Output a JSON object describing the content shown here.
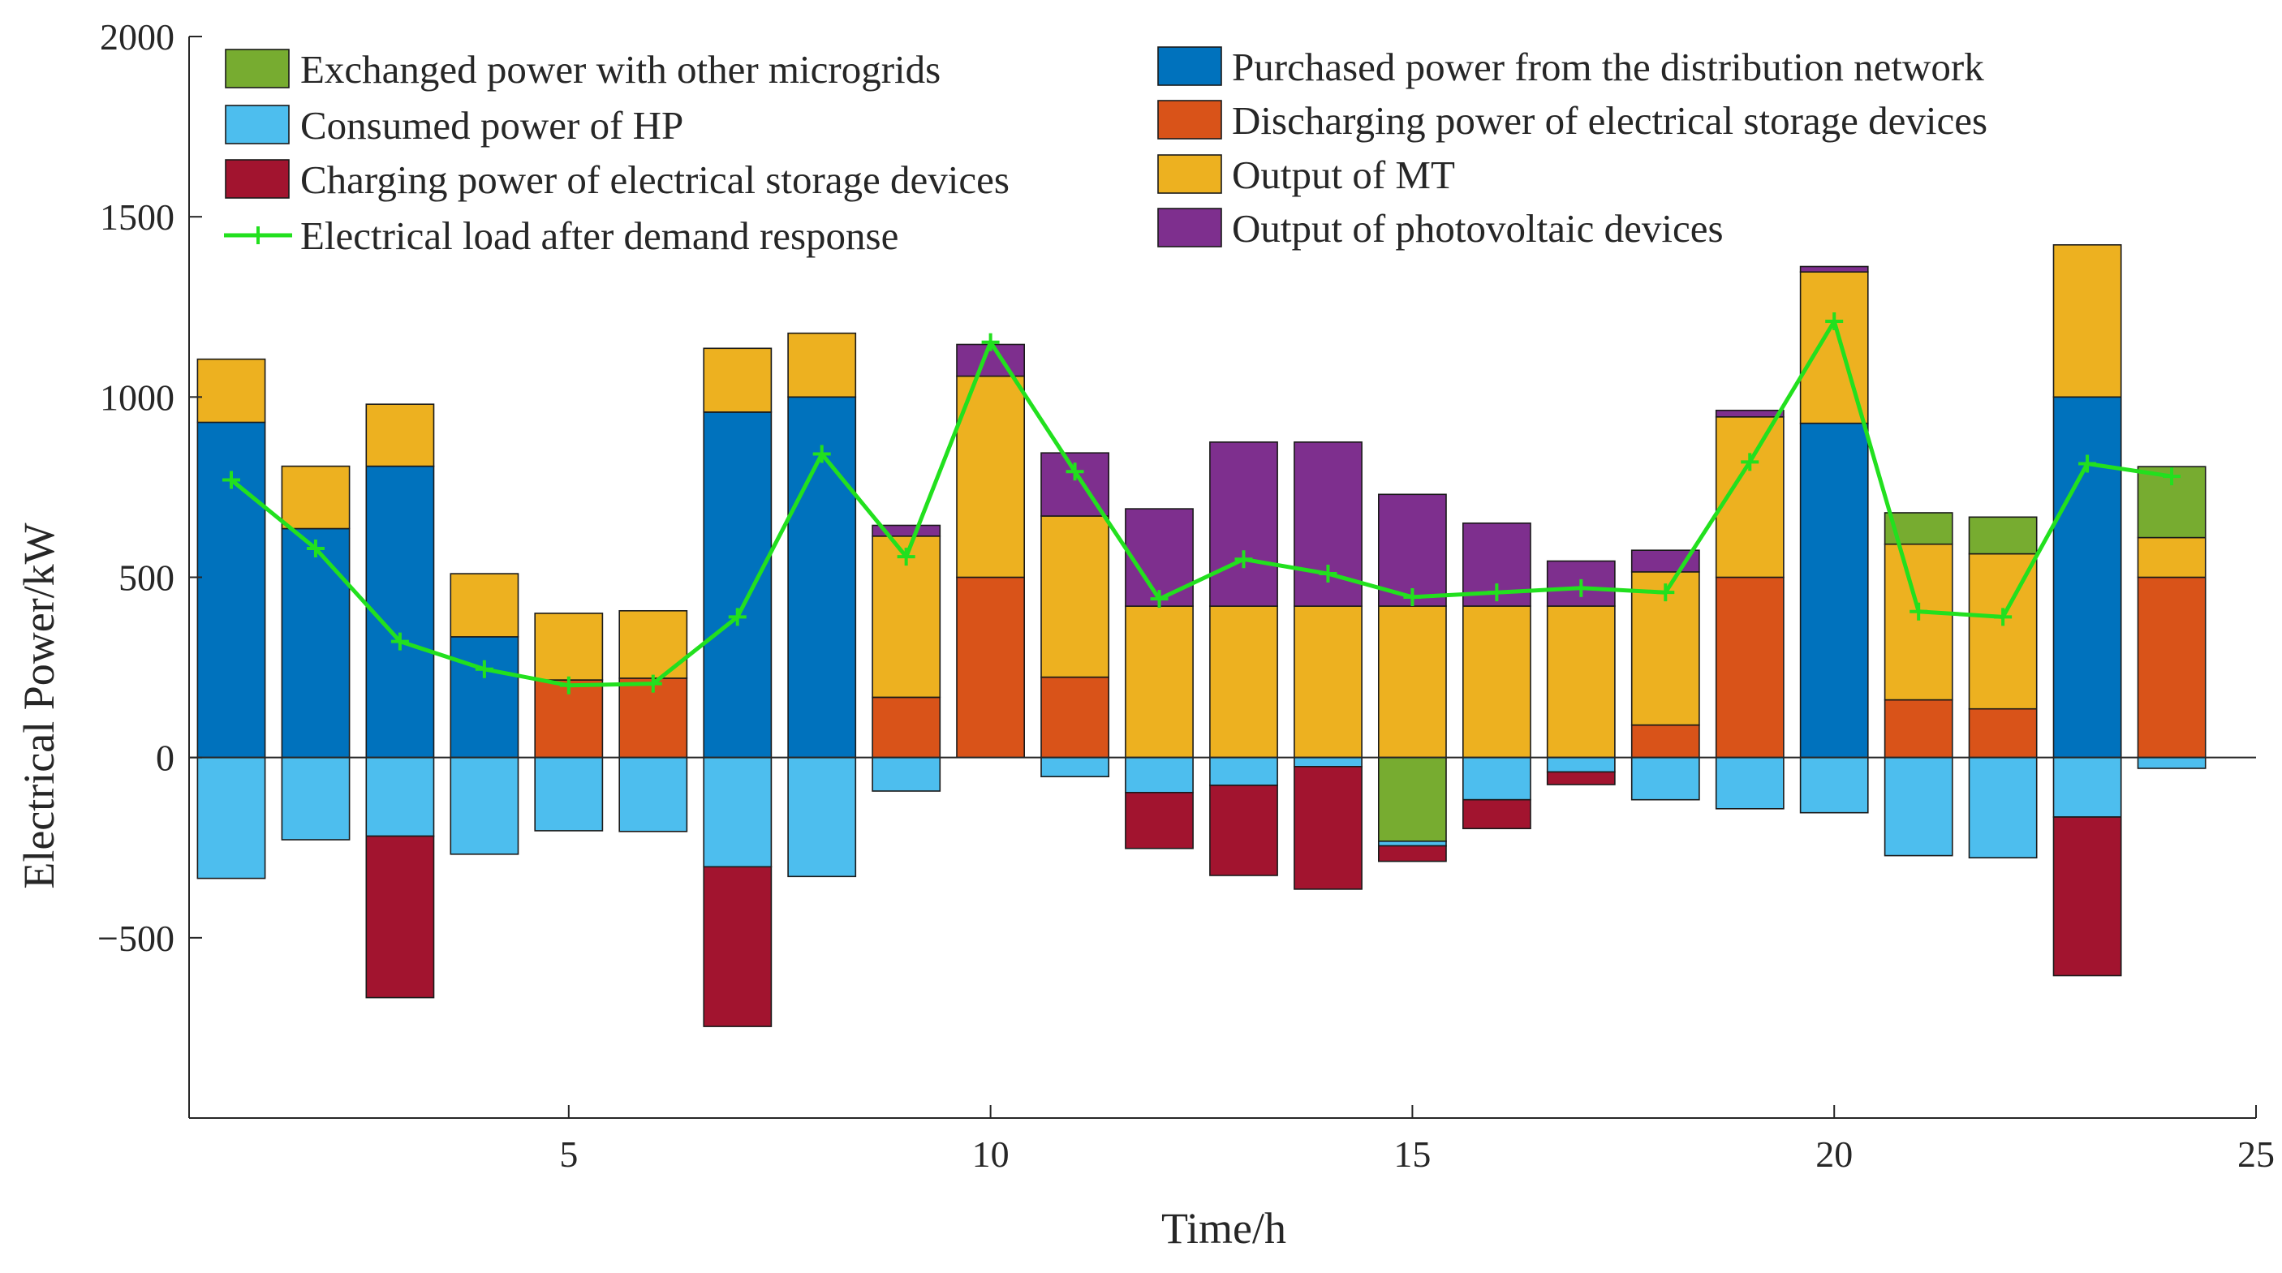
{
  "chart_data": {
    "type": "bar",
    "stacked": true,
    "title": "",
    "xlabel": "Time/h",
    "ylabel": "Electrical Power/kW",
    "xlim": [
      0.5,
      25
    ],
    "ylim": [
      -1000,
      2000
    ],
    "xticks": [
      5,
      10,
      15,
      20,
      25
    ],
    "yticks": [
      -500,
      0,
      500,
      1000,
      1500,
      2000
    ],
    "ytick_labels": [
      "−500",
      "0",
      "500",
      "1000",
      "1500",
      "2000"
    ],
    "grid": false,
    "zero_line": true,
    "x": [
      1,
      2,
      3,
      4,
      5,
      6,
      7,
      8,
      9,
      10,
      11,
      12,
      13,
      14,
      15,
      16,
      17,
      18,
      19,
      20,
      21,
      22,
      23,
      24
    ],
    "series": [
      {
        "name": "Purchased power from the distribution network",
        "color": "#0072BD",
        "values": [
          930,
          635,
          808,
          335,
          0,
          0,
          958,
          1000,
          0,
          0,
          0,
          0,
          0,
          0,
          0,
          0,
          0,
          0,
          0,
          927,
          0,
          0,
          1000,
          0
        ]
      },
      {
        "name": "Discharging power of electrical storage devices",
        "color": "#D95319",
        "values": [
          0,
          0,
          0,
          0,
          215,
          220,
          0,
          0,
          167,
          500,
          223,
          0,
          0,
          0,
          0,
          0,
          0,
          90,
          500,
          0,
          160,
          135,
          0,
          500
        ]
      },
      {
        "name": "Output of MT",
        "color": "#EDB120",
        "values": [
          175,
          173,
          172,
          175,
          185,
          187,
          177,
          177,
          447,
          558,
          447,
          420,
          420,
          420,
          420,
          420,
          420,
          425,
          445,
          420,
          432,
          430,
          422,
          110
        ]
      },
      {
        "name": "Output of photovoltaic devices",
        "color": "#7E2F8E",
        "values": [
          0,
          0,
          0,
          0,
          0,
          0,
          0,
          0,
          30,
          88,
          175,
          270,
          455,
          455,
          310,
          230,
          125,
          60,
          18,
          15,
          0,
          0,
          0,
          0
        ]
      },
      {
        "name": "Exchanged power with other microgrids",
        "color": "#77AC30",
        "values": [
          0,
          0,
          0,
          0,
          0,
          0,
          0,
          0,
          0,
          0,
          0,
          0,
          0,
          0,
          -232,
          0,
          0,
          0,
          0,
          0,
          87,
          102,
          0,
          197
        ]
      },
      {
        "name": "Consumed power of HP",
        "color": "#4DBEEE",
        "values": [
          -335,
          -228,
          -218,
          -268,
          -203,
          -205,
          -303,
          -330,
          -93,
          0,
          -53,
          -97,
          -77,
          -25,
          -13,
          -117,
          -40,
          -117,
          -142,
          -153,
          -272,
          -278,
          -165,
          -30
        ]
      },
      {
        "name": "Charging power of electrical storage devices",
        "color": "#A2142F",
        "values": [
          0,
          0,
          0,
          0,
          0,
          0,
          0,
          0,
          0,
          0,
          0,
          0,
          0,
          0,
          0,
          0,
          0,
          0,
          0,
          0,
          0,
          0,
          0,
          0
        ]
      },
      {
        "name": "Charging power of electrical storage devices",
        "color": "#A2142F",
        "values": [
          0,
          0,
          -448,
          0,
          0,
          0,
          -443,
          0,
          0,
          0,
          0,
          -155,
          -250,
          -340,
          -43,
          -80,
          -35,
          0,
          0,
          0,
          0,
          0,
          -440,
          0
        ]
      }
    ],
    "line": {
      "name": "Electrical load after demand response",
      "color": "#22E01E",
      "marker": "+",
      "values": [
        770,
        580,
        322,
        245,
        200,
        205,
        390,
        842,
        557,
        1152,
        793,
        440,
        550,
        510,
        445,
        458,
        470,
        458,
        820,
        1210,
        405,
        390,
        815,
        780
      ]
    },
    "legend": {
      "placement": "top, two columns",
      "left": [
        {
          "label": "Exchanged power with other microgrids",
          "color": "#77AC30",
          "kind": "patch"
        },
        {
          "label": "Consumed power of HP",
          "color": "#4DBEEE",
          "kind": "patch"
        },
        {
          "label": "Charging power of electrical storage devices",
          "color": "#A2142F",
          "kind": "patch"
        },
        {
          "label": "Electrical load after demand response",
          "color": "#22E01E",
          "kind": "line"
        }
      ],
      "right": [
        {
          "label": "Purchased power from the distribution network",
          "color": "#0072BD",
          "kind": "patch"
        },
        {
          "label": "Discharging power of electrical storage devices",
          "color": "#D95319",
          "kind": "patch"
        },
        {
          "label": "Output of MT",
          "color": "#EDB120",
          "kind": "patch"
        },
        {
          "label": "Output of photovoltaic devices",
          "color": "#7E2F8E",
          "kind": "patch"
        }
      ]
    }
  }
}
